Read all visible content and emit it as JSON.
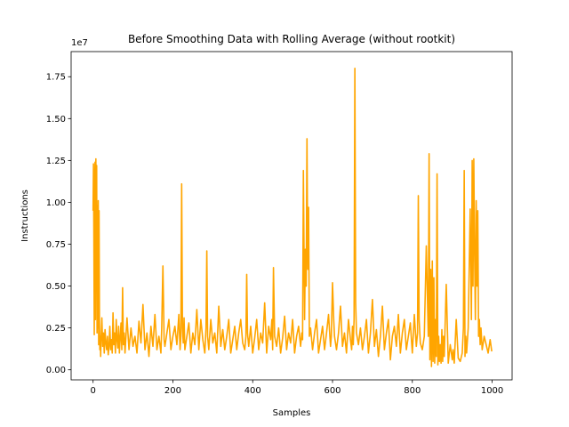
{
  "chart_data": {
    "type": "line",
    "title": "Before Smoothing Data with Rolling Average (without rootkit)",
    "xlabel": "Samples",
    "ylabel": "Instructions",
    "offset_label": "1e7",
    "xlim": [
      -55,
      1050
    ],
    "ylim": [
      -0.06,
      1.9
    ],
    "xticks": [
      0,
      200,
      400,
      600,
      800,
      1000
    ],
    "xtick_labels": [
      "0",
      "200",
      "400",
      "600",
      "800",
      "1000"
    ],
    "yticks": [
      0.0,
      0.25,
      0.5,
      0.75,
      1.0,
      1.25,
      1.5,
      1.75
    ],
    "ytick_labels": [
      "0.00",
      "0.25",
      "0.50",
      "0.75",
      "1.00",
      "1.25",
      "1.50",
      "1.75"
    ],
    "grid": false,
    "line_color": "#ffa500",
    "series": [
      {
        "x": [
          0,
          1,
          2,
          3,
          4,
          5,
          6,
          7,
          8,
          9,
          10,
          11,
          12,
          13,
          14,
          15,
          16,
          17,
          18,
          19,
          20,
          22,
          24,
          26,
          28,
          30,
          32,
          34,
          36,
          38,
          40,
          42,
          44,
          46,
          48,
          50,
          52,
          54,
          56,
          58,
          60,
          62,
          64,
          66,
          68,
          70,
          72,
          74,
          76,
          78,
          80,
          85,
          90,
          95,
          100,
          105,
          110,
          115,
          120,
          125,
          130,
          135,
          140,
          145,
          150,
          155,
          160,
          165,
          170,
          172,
          175,
          178,
          180,
          185,
          190,
          195,
          200,
          205,
          210,
          215,
          218,
          220,
          222,
          224,
          226,
          228,
          230,
          235,
          240,
          245,
          250,
          255,
          260,
          265,
          270,
          275,
          280,
          283,
          285,
          287,
          290,
          295,
          300,
          305,
          310,
          315,
          320,
          325,
          330,
          335,
          340,
          345,
          350,
          355,
          360,
          365,
          370,
          375,
          380,
          383,
          385,
          387,
          390,
          395,
          400,
          405,
          410,
          415,
          420,
          425,
          430,
          435,
          440,
          445,
          448,
          450,
          452,
          455,
          460,
          465,
          470,
          475,
          480,
          485,
          490,
          495,
          500,
          505,
          510,
          515,
          520,
          523,
          525,
          527,
          530,
          532,
          534,
          536,
          538,
          540,
          542,
          545,
          550,
          555,
          560,
          565,
          570,
          575,
          580,
          585,
          590,
          595,
          597,
          600,
          603,
          605,
          610,
          615,
          620,
          625,
          630,
          635,
          640,
          645,
          648,
          650,
          652,
          654,
          656,
          658,
          660,
          665,
          670,
          675,
          680,
          685,
          690,
          695,
          700,
          705,
          710,
          715,
          720,
          725,
          730,
          735,
          740,
          745,
          750,
          755,
          760,
          765,
          770,
          775,
          780,
          785,
          790,
          795,
          800,
          805,
          810,
          813,
          815,
          817,
          820,
          825,
          830,
          835,
          840,
          842,
          844,
          846,
          848,
          850,
          852,
          854,
          856,
          858,
          860,
          862,
          864,
          866,
          868,
          870,
          872,
          874,
          876,
          878,
          880,
          885,
          890,
          895,
          900,
          902,
          905,
          910,
          915,
          920,
          925,
          928,
          930,
          932,
          934,
          936,
          940,
          945,
          948,
          950,
          952,
          954,
          956,
          958,
          960,
          962,
          964,
          966,
          968,
          970,
          972,
          975,
          980,
          985,
          990,
          995,
          999
        ],
        "y": [
          0.95,
          1.23,
          0.78,
          0.21,
          1.1,
          1.24,
          0.3,
          1.26,
          0.5,
          1.22,
          0.22,
          0.98,
          0.25,
          1.01,
          0.15,
          0.95,
          0.3,
          0.12,
          0.2,
          0.08,
          0.18,
          0.31,
          0.14,
          0.22,
          0.1,
          0.24,
          0.16,
          0.12,
          0.2,
          0.09,
          0.14,
          0.26,
          0.12,
          0.18,
          0.1,
          0.34,
          0.15,
          0.22,
          0.1,
          0.3,
          0.18,
          0.13,
          0.26,
          0.1,
          0.19,
          0.28,
          0.12,
          0.49,
          0.15,
          0.22,
          0.1,
          0.31,
          0.12,
          0.25,
          0.14,
          0.2,
          0.1,
          0.29,
          0.16,
          0.39,
          0.12,
          0.22,
          0.08,
          0.26,
          0.14,
          0.33,
          0.12,
          0.2,
          0.1,
          0.25,
          0.62,
          0.18,
          0.14,
          0.22,
          0.3,
          0.12,
          0.2,
          0.26,
          0.15,
          0.33,
          0.12,
          0.2,
          1.11,
          0.25,
          0.16,
          0.31,
          0.12,
          0.2,
          0.28,
          0.1,
          0.22,
          0.15,
          0.36,
          0.12,
          0.3,
          0.18,
          0.1,
          0.25,
          0.71,
          0.2,
          0.12,
          0.3,
          0.16,
          0.22,
          0.1,
          0.38,
          0.14,
          0.24,
          0.12,
          0.2,
          0.3,
          0.1,
          0.18,
          0.26,
          0.12,
          0.22,
          0.3,
          0.16,
          0.12,
          0.2,
          0.57,
          0.22,
          0.14,
          0.26,
          0.1,
          0.19,
          0.3,
          0.12,
          0.22,
          0.16,
          0.4,
          0.1,
          0.26,
          0.18,
          0.3,
          0.12,
          0.61,
          0.2,
          0.14,
          0.25,
          0.1,
          0.19,
          0.32,
          0.12,
          0.22,
          0.16,
          0.3,
          0.1,
          0.2,
          0.26,
          0.14,
          0.22,
          0.18,
          1.19,
          0.3,
          0.72,
          0.5,
          1.38,
          0.6,
          0.97,
          0.2,
          0.25,
          0.12,
          0.22,
          0.3,
          0.1,
          0.18,
          0.26,
          0.12,
          0.22,
          0.33,
          0.14,
          0.2,
          0.52,
          0.3,
          0.2,
          0.12,
          0.22,
          0.38,
          0.14,
          0.22,
          0.1,
          0.3,
          0.18,
          0.12,
          0.26,
          0.15,
          0.3,
          1.8,
          0.4,
          0.22,
          0.15,
          0.25,
          0.12,
          0.2,
          0.3,
          0.1,
          0.22,
          0.42,
          0.14,
          0.24,
          0.08,
          0.2,
          0.38,
          0.12,
          0.22,
          0.3,
          0.06,
          0.2,
          0.26,
          0.14,
          0.33,
          0.1,
          0.22,
          0.3,
          0.12,
          0.2,
          0.28,
          0.1,
          0.33,
          0.14,
          0.22,
          1.04,
          0.3,
          0.16,
          0.12,
          0.2,
          0.74,
          0.2,
          1.29,
          0.06,
          0.6,
          0.02,
          0.65,
          0.05,
          0.55,
          0.04,
          0.3,
          0.08,
          1.17,
          0.03,
          0.2,
          0.05,
          0.15,
          0.04,
          0.24,
          0.05,
          0.2,
          0.08,
          0.51,
          0.04,
          0.15,
          0.06,
          0.12,
          0.04,
          0.3,
          0.07,
          0.05,
          0.1,
          0.25,
          1.19,
          0.08,
          0.2,
          0.1,
          0.25,
          0.96,
          0.3,
          1.25,
          0.5,
          1.26,
          0.7,
          0.3,
          1.01,
          0.5,
          0.95,
          0.2,
          0.3,
          0.15,
          0.25,
          0.12,
          0.2,
          0.15,
          0.1,
          0.18,
          0.11
        ]
      }
    ]
  }
}
